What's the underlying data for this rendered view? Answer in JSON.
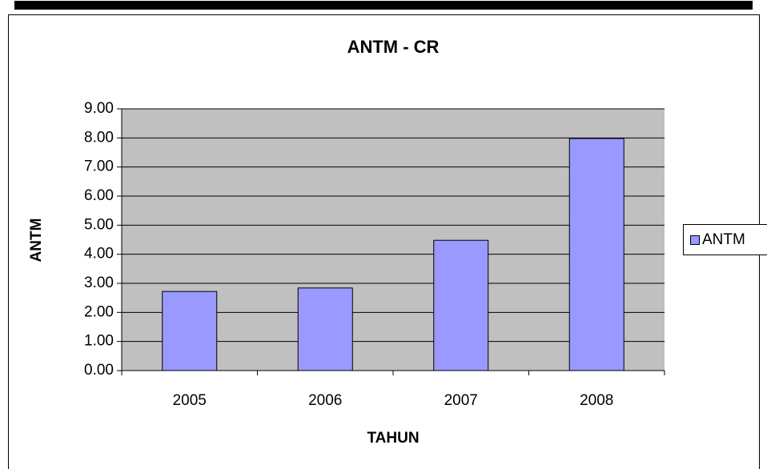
{
  "chart_data": {
    "type": "bar",
    "title": "ANTM - CR",
    "x_label": "TAHUN",
    "y_label": "ANTM",
    "categories": [
      "2005",
      "2006",
      "2007",
      "2008"
    ],
    "series": [
      {
        "name": "ANTM",
        "color": "#9999ff",
        "values": [
          2.72,
          2.84,
          4.48,
          7.98
        ]
      }
    ],
    "ylim": [
      0,
      9
    ],
    "yticks": [
      {
        "value": 0,
        "label": "0.00"
      },
      {
        "value": 1,
        "label": "1.00"
      },
      {
        "value": 2,
        "label": "2.00"
      },
      {
        "value": 3,
        "label": "3.00"
      },
      {
        "value": 4,
        "label": "4.00"
      },
      {
        "value": 5,
        "label": "5.00"
      },
      {
        "value": 6,
        "label": "6.00"
      },
      {
        "value": 7,
        "label": "7.00"
      },
      {
        "value": 8,
        "label": "8.00"
      },
      {
        "value": 9,
        "label": "9.00"
      }
    ],
    "grid": true,
    "legend": "right",
    "plot_background": "#c0c0c0"
  }
}
